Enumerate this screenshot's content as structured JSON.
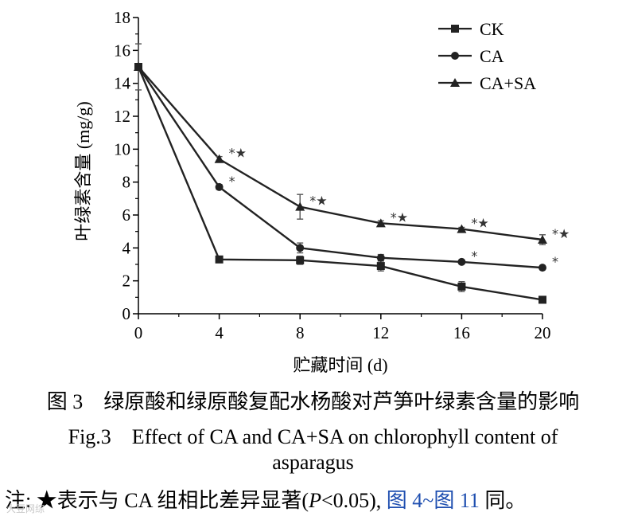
{
  "chart_data": {
    "type": "line",
    "x": [
      0,
      4,
      8,
      12,
      16,
      20
    ],
    "xlabel": "贮藏时间 (d)",
    "ylabel": "叶绿素含量 (mg/g)",
    "xlim": [
      0,
      20
    ],
    "ylim": [
      0,
      18
    ],
    "xticks": [
      "0",
      "4",
      "8",
      "12",
      "16",
      "20"
    ],
    "yticks": [
      "0",
      "2",
      "4",
      "6",
      "8",
      "10",
      "12",
      "14",
      "16",
      "18"
    ],
    "legend_position": "top-right",
    "grid": false,
    "series": [
      {
        "name": "CK",
        "marker": "square",
        "values": [
          15.0,
          3.3,
          3.25,
          2.9,
          1.65,
          0.85
        ],
        "errors": [
          1.4,
          0.1,
          0.25,
          0.3,
          0.3,
          0.1
        ],
        "annotations": [
          "",
          "",
          "",
          "",
          "",
          ""
        ]
      },
      {
        "name": "CA",
        "marker": "circle",
        "values": [
          15.0,
          7.7,
          4.0,
          3.4,
          3.15,
          2.8
        ],
        "errors": [
          0,
          0.15,
          0.3,
          0.2,
          0.1,
          0.1
        ],
        "annotations": [
          "",
          "*",
          "",
          "",
          "*",
          "*"
        ]
      },
      {
        "name": "CA+SA",
        "marker": "triangle",
        "values": [
          15.0,
          9.4,
          6.5,
          5.5,
          5.15,
          4.5
        ],
        "errors": [
          0,
          0.15,
          0.75,
          0.15,
          0.1,
          0.3
        ],
        "annotations": [
          "",
          "*★",
          "*★",
          "*★",
          "*★",
          "*★"
        ]
      }
    ]
  },
  "captions": {
    "cn": "图 3　绿原酸和绿原酸复配水杨酸对芦笋叶绿素含量的影响",
    "en_line1": "Fig.3　Effect of CA and CA+SA on chlorophyll content of",
    "en_line2": "asparagus"
  },
  "note": {
    "prefix": "注: ★表示与 CA 组相比差异显著(",
    "p": "P",
    "threshold": "<0.05), ",
    "ref": "图 4~图 11",
    "suffix": " 同。"
  },
  "watermark": "大豆网综"
}
